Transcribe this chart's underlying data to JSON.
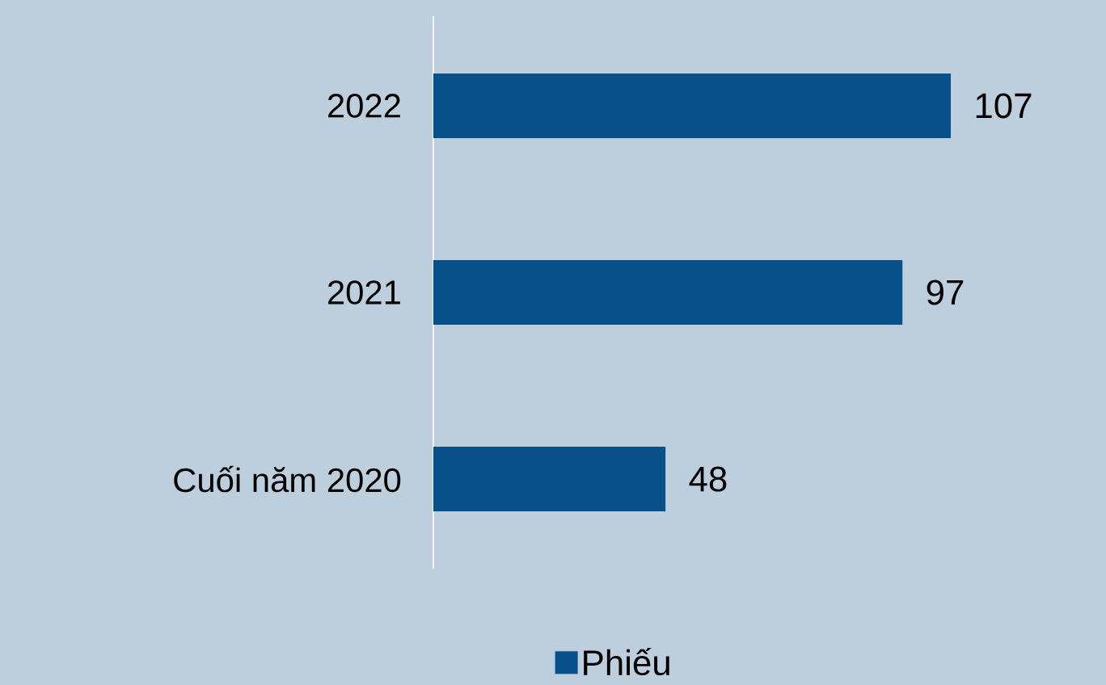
{
  "chart_data": {
    "type": "bar",
    "orientation": "horizontal",
    "categories": [
      "2022",
      "2021",
      "Cuối năm 2020"
    ],
    "series": [
      {
        "name": "Phiếu",
        "color": "#07508a",
        "values": [
          107,
          97,
          48
        ]
      }
    ],
    "data_labels": true,
    "legend": "bottom"
  }
}
